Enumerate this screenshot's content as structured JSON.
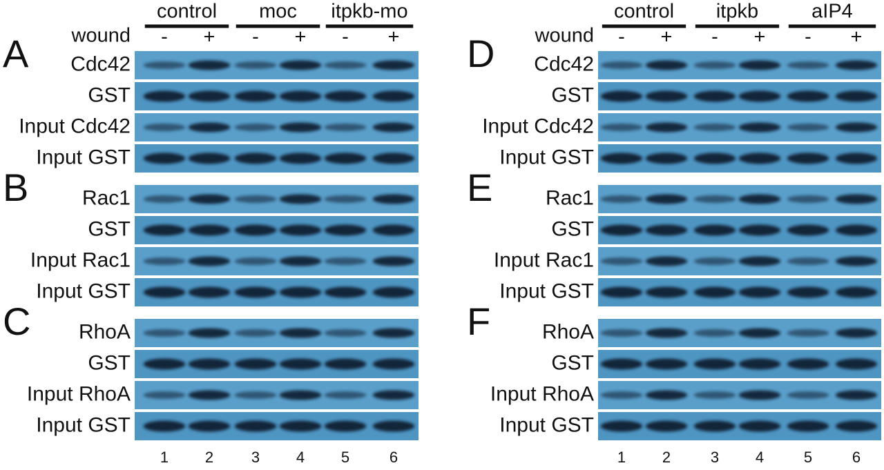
{
  "figures": [
    {
      "groups": [
        "control",
        "moc",
        "itpkb-mo"
      ],
      "wound_label": "wound",
      "wound_signs": [
        "-",
        "+",
        "-",
        "+",
        "-",
        "+"
      ],
      "panels": [
        {
          "letter": "A",
          "rows": [
            "Cdc42",
            "GST",
            "Input Cdc42",
            "Input GST"
          ]
        },
        {
          "letter": "B",
          "rows": [
            "Rac1",
            "GST",
            "Input Rac1",
            "Input GST"
          ]
        },
        {
          "letter": "C",
          "rows": [
            "RhoA",
            "GST",
            "Input RhoA",
            "Input GST"
          ]
        }
      ],
      "lanes": [
        "1",
        "2",
        "3",
        "4",
        "5",
        "6"
      ]
    },
    {
      "groups": [
        "control",
        "itpkb",
        "aIP4"
      ],
      "wound_label": "wound",
      "wound_signs": [
        "-",
        "+",
        "-",
        "+",
        "-",
        "+"
      ],
      "panels": [
        {
          "letter": "D",
          "rows": [
            "Cdc42",
            "GST",
            "Input Cdc42",
            "Input GST"
          ]
        },
        {
          "letter": "E",
          "rows": [
            "Rac1",
            "GST",
            "Input Rac1",
            "Input GST"
          ]
        },
        {
          "letter": "F",
          "rows": [
            "RhoA",
            "GST",
            "Input RhoA",
            "Input GST"
          ]
        }
      ],
      "lanes": [
        "1",
        "2",
        "3",
        "4",
        "5",
        "6"
      ]
    }
  ]
}
